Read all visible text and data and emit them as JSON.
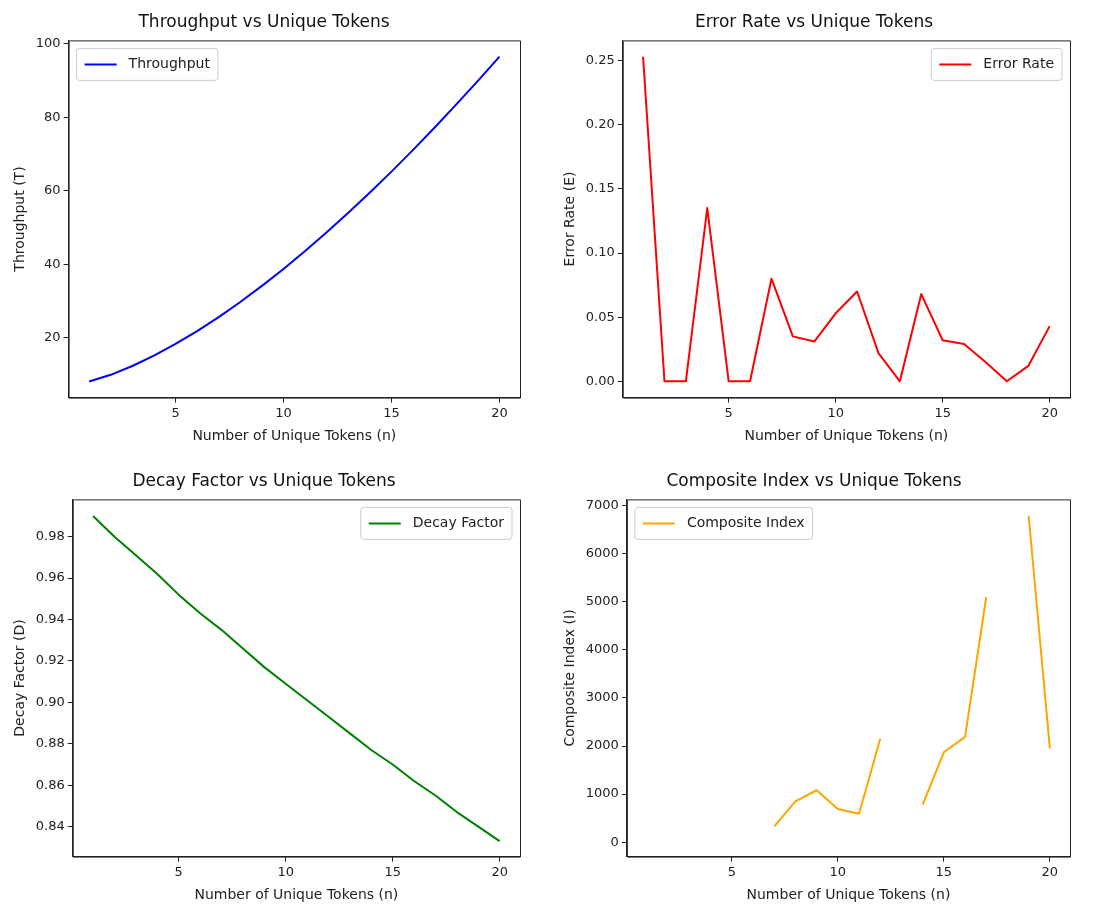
{
  "chart_data": [
    {
      "type": "line",
      "title": "Throughput vs Unique Tokens",
      "xlabel": "Number of Unique Tokens (n)",
      "ylabel": "Throughput (T)",
      "x": [
        1,
        2,
        3,
        4,
        5,
        6,
        7,
        8,
        9,
        10,
        11,
        12,
        13,
        14,
        15,
        16,
        17,
        18,
        19,
        20
      ],
      "series": [
        {
          "name": "Throughput",
          "color": "#0000ff",
          "values": [
            8.1,
            9.9,
            12.3,
            15.1,
            18.3,
            21.8,
            25.6,
            29.7,
            34.1,
            38.7,
            43.6,
            48.7,
            54.0,
            59.5,
            65.2,
            71.1,
            77.2,
            83.5,
            89.9,
            96.5
          ]
        }
      ],
      "xlim": [
        0.05,
        20.95
      ],
      "xticks": [
        5,
        10,
        15,
        20
      ],
      "ylim": [
        3.7,
        100.9
      ],
      "yticks": [
        20,
        40,
        60,
        80,
        100
      ],
      "grid": false,
      "legend": "top left",
      "line_style": "solid",
      "marker": "none"
    },
    {
      "type": "line",
      "title": "Error Rate vs Unique Tokens",
      "xlabel": "Number of Unique Tokens (n)",
      "ylabel": "Error Rate (E)",
      "x": [
        1,
        2,
        3,
        4,
        5,
        6,
        7,
        8,
        9,
        10,
        11,
        12,
        13,
        14,
        15,
        16,
        17,
        18,
        19,
        20
      ],
      "series": [
        {
          "name": "Error Rate",
          "color": "#ff0000",
          "values": [
            0.253,
            0,
            0,
            0.135,
            0,
            0,
            0.08,
            0.035,
            0.031,
            0.053,
            0.07,
            0.022,
            0,
            0.068,
            0.032,
            0.029,
            0.015,
            0,
            0.012,
            0.043
          ]
        }
      ],
      "xlim": [
        0.05,
        20.95
      ],
      "xticks": [
        5,
        10,
        15,
        20
      ],
      "ylim": [
        -0.0127,
        0.2657
      ],
      "yticks": [
        {
          "value": 0,
          "label": "0.00"
        },
        {
          "value": 0.05,
          "label": "0.05"
        },
        {
          "value": 0.1,
          "label": "0.10"
        },
        {
          "value": 0.15,
          "label": "0.15"
        },
        {
          "value": 0.2,
          "label": "0.20"
        },
        {
          "value": 0.25,
          "label": "0.25"
        }
      ],
      "grid": false,
      "legend": "top right",
      "line_style": "solid",
      "marker": "none"
    },
    {
      "type": "line",
      "title": "Decay Factor vs Unique Tokens",
      "xlabel": "Number of Unique Tokens (n)",
      "ylabel": "Decay Factor (D)",
      "x": [
        1,
        2,
        3,
        4,
        5,
        6,
        7,
        8,
        9,
        10,
        11,
        12,
        13,
        14,
        15,
        16,
        17,
        18,
        19,
        20
      ],
      "series": [
        {
          "name": "Decay Factor",
          "color": "#008000",
          "values": [
            0.99,
            0.98,
            0.971,
            0.962,
            0.952,
            0.943,
            0.935,
            0.926,
            0.917,
            0.909,
            0.901,
            0.893,
            0.885,
            0.877,
            0.87,
            0.862,
            0.855,
            0.847,
            0.84,
            0.833
          ]
        }
      ],
      "xlim": [
        0.05,
        20.95
      ],
      "xticks": [
        5,
        10,
        15,
        20
      ],
      "ylim": [
        0.8255,
        0.998
      ],
      "yticks": [
        {
          "value": 0.84,
          "label": "0.84"
        },
        {
          "value": 0.86,
          "label": "0.86"
        },
        {
          "value": 0.88,
          "label": "0.88"
        },
        {
          "value": 0.9,
          "label": "0.90"
        },
        {
          "value": 0.92,
          "label": "0.92"
        },
        {
          "value": 0.94,
          "label": "0.94"
        },
        {
          "value": 0.96,
          "label": "0.96"
        },
        {
          "value": 0.98,
          "label": "0.98"
        }
      ],
      "grid": false,
      "legend": "top right",
      "line_style": "solid",
      "marker": "none"
    },
    {
      "type": "line",
      "title": "Composite Index vs Unique Tokens",
      "xlabel": "Number of Unique Tokens (n)",
      "ylabel": "Composite Index (I)",
      "series": [
        {
          "name": "Composite Index",
          "color": "#ffa500",
          "x": [
            7,
            8,
            9,
            10,
            11,
            12,
            13,
            14,
            15,
            16,
            17,
            18,
            19,
            20
          ],
          "values": [
            330,
            850,
            1080,
            690,
            590,
            2150,
            null,
            780,
            1870,
            2190,
            5100,
            null,
            6790,
            1950
          ]
        }
      ],
      "xlim": [
        0.05,
        20.95
      ],
      "xticks": [
        5,
        10,
        15,
        20
      ],
      "ylim": [
        -300,
        7130
      ],
      "yticks": [
        0,
        1000,
        2000,
        3000,
        4000,
        5000,
        6000,
        7000
      ],
      "grid": false,
      "legend": "top left",
      "line_style": "solid",
      "marker": "none"
    }
  ]
}
